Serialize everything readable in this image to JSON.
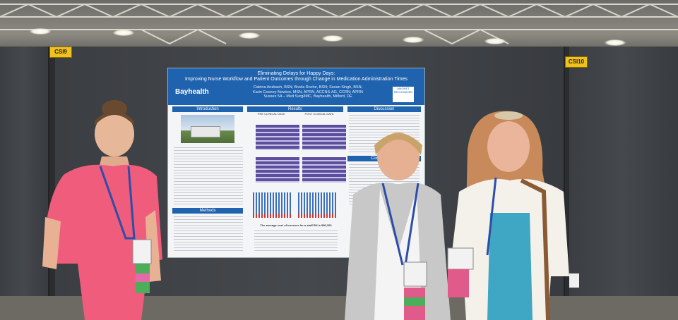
{
  "booth_signs": [
    {
      "label": "CSI9"
    },
    {
      "label": "CSI10"
    }
  ],
  "poster": {
    "title_line1": "Eliminating Delays for Happy Days:",
    "title_line2": "Improving Nurse Workflow and Patient Outcomes through Change in Medication Administration Times",
    "logo": "Bayhealth",
    "authors_line1": "Catrina Ansbach, BSN; Breda Roche, BSN; Susan Singh, BSN;",
    "authors_line2": "Karin Cooney-Newton, MSN, APRN, ACCNS-AG, CCRN; APRN",
    "authors_line3": "Sussex 5A – Med Surg/IMC, Bayhealth, Milford, DE",
    "badge": "MAGNET RECOGNIZED",
    "sections": {
      "introduction": "Introduction",
      "results": "Results",
      "discussion": "Discussion",
      "methods": "Methods",
      "conclusion": "Conclusion an"
    },
    "chart_labels": {
      "pre": "PRE CLINICAL DATA",
      "post": "POST CLINICAL DATA"
    },
    "turnover_note": "The average cost of turnover for a staff RN is $56,300"
  },
  "colors": {
    "poster_header": "#1f62ad",
    "sign_yellow": "#f2c21c"
  }
}
